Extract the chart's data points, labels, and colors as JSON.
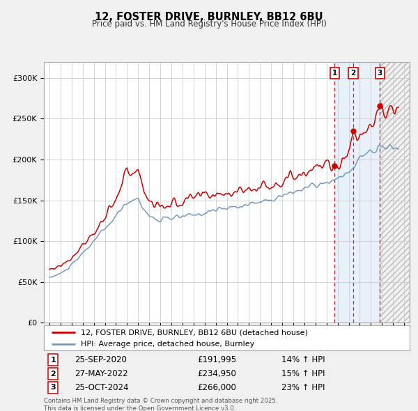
{
  "title": "12, FOSTER DRIVE, BURNLEY, BB12 6BU",
  "subtitle": "Price paid vs. HM Land Registry's House Price Index (HPI)",
  "legend_line1": "12, FOSTER DRIVE, BURNLEY, BB12 6BU (detached house)",
  "legend_line2": "HPI: Average price, detached house, Burnley",
  "transactions": [
    {
      "label": "1",
      "date": "25-SEP-2020",
      "price": 191995,
      "pct": "14%",
      "dir": "↑",
      "x_year": 2020.73
    },
    {
      "label": "2",
      "date": "27-MAY-2022",
      "price": 234950,
      "pct": "15%",
      "dir": "↑",
      "x_year": 2022.41
    },
    {
      "label": "3",
      "date": "25-OCT-2024",
      "price": 266000,
      "pct": "23%",
      "dir": "↑",
      "x_year": 2024.82
    }
  ],
  "footnote": "Contains HM Land Registry data © Crown copyright and database right 2025.\nThis data is licensed under the Open Government Licence v3.0.",
  "ylim": [
    0,
    320000
  ],
  "xlim_start": 1994.5,
  "xlim_end": 2027.5,
  "yticks": [
    0,
    50000,
    100000,
    150000,
    200000,
    250000,
    300000
  ],
  "xticks": [
    1995,
    1996,
    1997,
    1998,
    1999,
    2000,
    2001,
    2002,
    2003,
    2004,
    2005,
    2006,
    2007,
    2008,
    2009,
    2010,
    2011,
    2012,
    2013,
    2014,
    2015,
    2016,
    2017,
    2018,
    2019,
    2020,
    2021,
    2022,
    2023,
    2024,
    2025,
    2026,
    2027
  ],
  "red_color": "#cc0000",
  "blue_color": "#7799bb",
  "bg_color": "#f0f0f0",
  "plot_bg_color": "#ffffff",
  "tx1_x": 2020.73,
  "tx2_x": 2022.41,
  "tx3_x": 2024.82
}
